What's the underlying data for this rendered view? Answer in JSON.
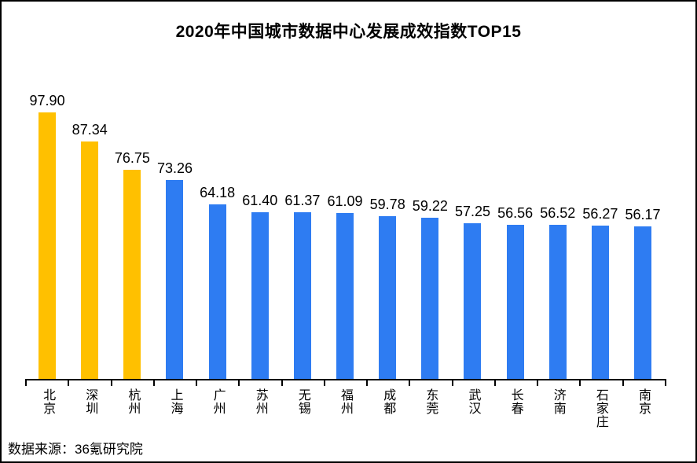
{
  "title": "2020年中国城市数据中心发展成效指数TOP15",
  "source": "数据来源：36氪研究院",
  "colors": {
    "highlight_bar": "#FFC000",
    "default_bar": "#2E7CF2",
    "text": "#000000",
    "background": "#FFFFFF",
    "border": "#000000"
  },
  "chart_data": {
    "type": "bar",
    "title": "2020年中国城市数据中心发展成效指数TOP15",
    "categories": [
      "北京",
      "深圳",
      "杭州",
      "上海",
      "广州",
      "苏州",
      "无锡",
      "福州",
      "成都",
      "东莞",
      "武汉",
      "长春",
      "济南",
      "石家庄",
      "南京"
    ],
    "values": [
      97.9,
      87.34,
      76.75,
      73.26,
      64.18,
      61.4,
      61.37,
      61.09,
      59.78,
      59.22,
      57.25,
      56.56,
      56.52,
      56.27,
      56.17
    ],
    "value_labels": [
      "97.90",
      "87.34",
      "76.75",
      "73.26",
      "64.18",
      "61.40",
      "61.37",
      "61.09",
      "59.78",
      "59.22",
      "57.25",
      "56.56",
      "56.52",
      "56.27",
      "56.17"
    ],
    "highlight_count": 3,
    "xlabel": "",
    "ylabel": "",
    "ylim": [
      0,
      104
    ],
    "grid": false,
    "legend": false,
    "data_labels": "above bars",
    "x_tick_label_orientation": "vertical",
    "source_note": "数据来源：36氪研究院"
  }
}
